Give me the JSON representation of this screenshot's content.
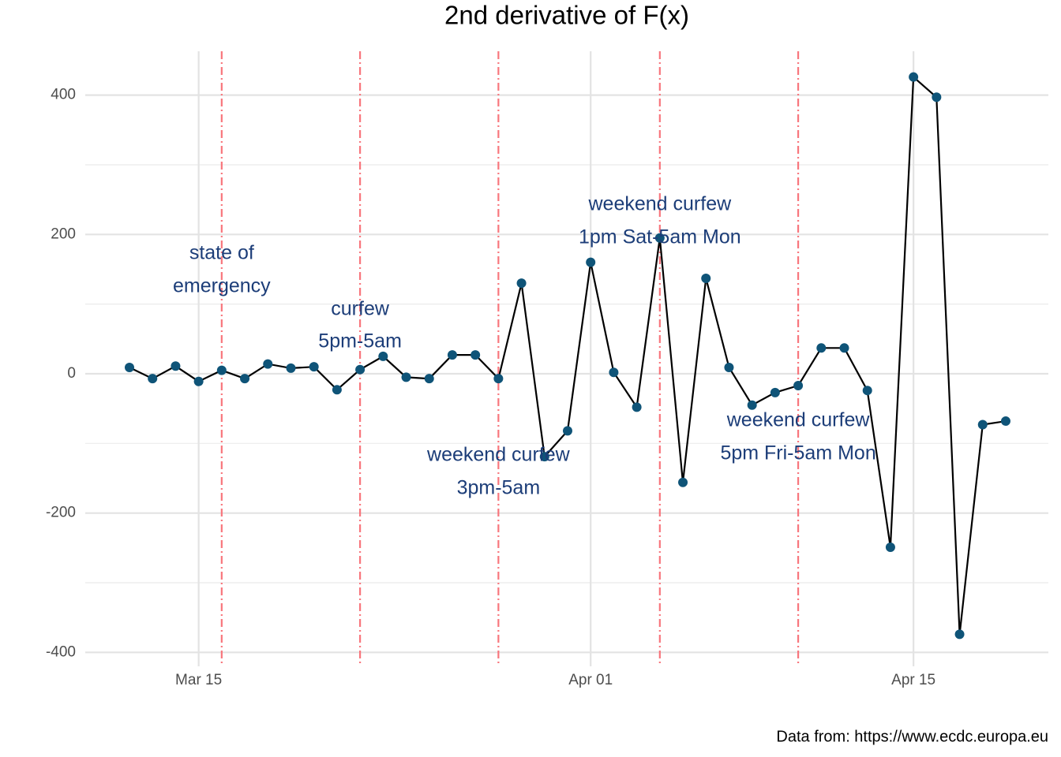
{
  "chart_data": {
    "type": "line",
    "title": "2nd derivative of F(x)",
    "caption": "Data from: https://www.ecdc.europa.eu",
    "categories": [
      null,
      null,
      null,
      "Mar 15",
      null,
      null,
      null,
      null,
      null,
      null,
      null,
      null,
      null,
      null,
      null,
      null,
      null,
      null,
      null,
      null,
      "Apr 01",
      null,
      null,
      null,
      null,
      null,
      null,
      null,
      null,
      null,
      null,
      null,
      null,
      null,
      "Apr 15",
      null,
      null,
      null,
      null
    ],
    "series": [
      {
        "name": null,
        "color": "#000000",
        "point_color": "#0f5478",
        "values": [
          9,
          -7,
          11,
          -11,
          5,
          -7,
          14,
          8,
          10,
          -23,
          6,
          25,
          -5,
          -7,
          27,
          27,
          -7,
          130,
          -119,
          -82,
          160,
          2,
          -48,
          195,
          -156,
          137,
          9,
          -45,
          -27,
          -17,
          37,
          37,
          -24,
          -249,
          426,
          397,
          -374,
          -73,
          -68
        ]
      }
    ],
    "ylim": [
      -420,
      463
    ],
    "yticks": [
      -400,
      -200,
      0,
      200,
      400
    ],
    "minor_yticks": [
      -300,
      -100,
      100,
      300
    ],
    "grid": true,
    "annotations": [
      {
        "category_index": 4,
        "lines": [
          "state of",
          "emergency"
        ]
      },
      {
        "category_index": 10,
        "lines": [
          "curfew",
          "5pm-5am"
        ]
      },
      {
        "category_index": 16,
        "lines": [
          "weekend curfew",
          "3pm-5am"
        ]
      },
      {
        "category_index": 23,
        "lines": [
          "weekend curfew",
          "1pm Sat-5am Mon"
        ]
      },
      {
        "category_index": 29,
        "lines": [
          "weekend curfew",
          "5pm Fri-5am Mon"
        ]
      }
    ],
    "vline_color": "#f8767d"
  }
}
